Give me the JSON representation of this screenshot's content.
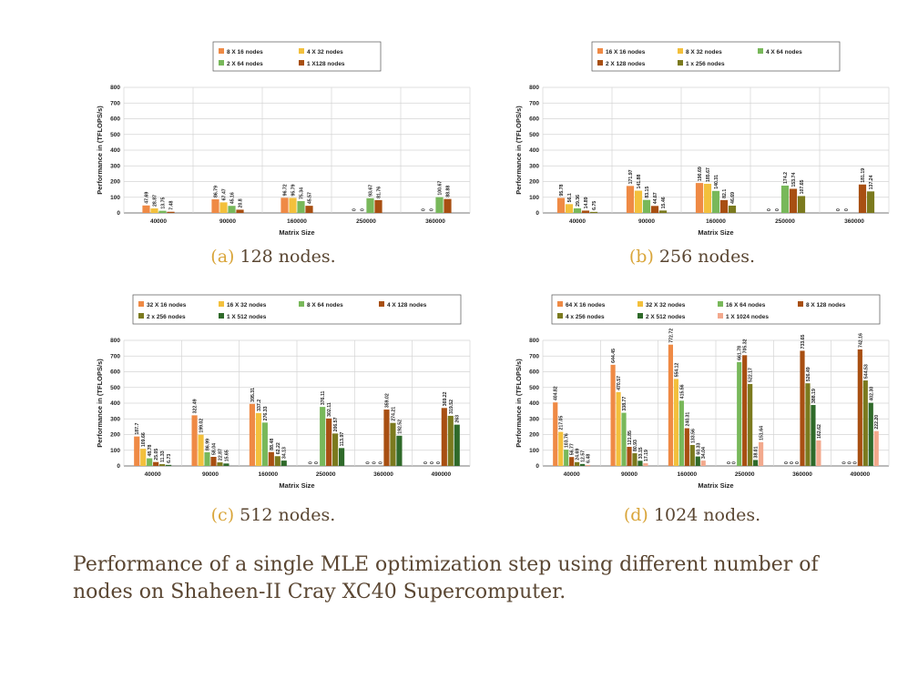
{
  "colors": {
    "orange": "#ef8a45",
    "gold": "#f3c03c",
    "lightgreen": "#78b85a",
    "darkorange": "#a84f12",
    "olive": "#7b7a1e",
    "darkgreen": "#2f6a2a",
    "peach": "#f3a98d",
    "caption_text": "#5a4632",
    "caption_label": "#d9a53a"
  },
  "panels": [
    {
      "label": "(a)",
      "text": "128 nodes."
    },
    {
      "label": "(b)",
      "text": "256 nodes."
    },
    {
      "label": "(c)",
      "text": "512 nodes."
    },
    {
      "label": "(d)",
      "text": "1024 nodes."
    }
  ],
  "figure_caption": "Performance of a single MLE optimization step using different number of nodes on Shaheen-II Cray XC40 Supercomputer.",
  "chart_data": [
    {
      "type": "bar",
      "ylabel": "Performance in (TFLOPS/s)",
      "xlabel": "Matrix Size",
      "ylim": [
        0,
        800
      ],
      "yticks": [
        0,
        100,
        200,
        300,
        400,
        500,
        600,
        700,
        800
      ],
      "grid": true,
      "legend_position": "top",
      "categories": [
        "40000",
        "90000",
        "160000",
        "250000",
        "360000"
      ],
      "series": [
        {
          "name": "8 X 16 nodes",
          "color": "orange",
          "values": [
            47.69,
            86.79,
            96.72,
            0,
            0
          ],
          "labels": [
            "47.69",
            "86.79",
            "96.72",
            "0",
            "0"
          ]
        },
        {
          "name": "4 X 32 nodes",
          "color": "gold",
          "values": [
            28.87,
            67.47,
            95.79,
            0,
            0
          ],
          "labels": [
            "28.87",
            "67.47",
            "95.79",
            "0",
            "0"
          ]
        },
        {
          "name": "2 X 64 nodes",
          "color": "lightgreen",
          "values": [
            13.75,
            45.16,
            75.34,
            93.67,
            100.67
          ],
          "labels": [
            "13.75",
            "45.16",
            "75.34",
            "93.67",
            "100.67"
          ]
        },
        {
          "name": "1 X128 nodes",
          "color": "darkorange",
          "values": [
            7.48,
            20.8,
            45.57,
            81.76,
            88.88
          ],
          "labels": [
            "7.48",
            "20.8",
            "45.57",
            "81.76",
            "88.88"
          ]
        }
      ]
    },
    {
      "type": "bar",
      "ylabel": "Performance in (TFLOPS/s)",
      "xlabel": "Matrix Size",
      "ylim": [
        0,
        800
      ],
      "yticks": [
        0,
        100,
        200,
        300,
        400,
        500,
        600,
        700,
        800
      ],
      "grid": true,
      "legend_position": "top",
      "categories": [
        "40000",
        "90000",
        "160000",
        "250000",
        "360000"
      ],
      "series": [
        {
          "name": "16 X 16 nodes",
          "color": "orange",
          "values": [
            95.78,
            171.97,
            190.69,
            0,
            0
          ],
          "labels": [
            "95.78",
            "171.97",
            "190.69",
            "0",
            "0"
          ]
        },
        {
          "name": "8 X 32 nodes",
          "color": "gold",
          "values": [
            56.1,
            141.88,
            185.67,
            0,
            0
          ],
          "labels": [
            "56.1",
            "141.88",
            "185.67",
            "0",
            "0"
          ]
        },
        {
          "name": "4 X 64 nodes",
          "color": "lightgreen",
          "values": [
            29.36,
            83.15,
            140.31,
            174.2,
            0
          ],
          "labels": [
            "29.36",
            "83.15",
            "140.31",
            "174.2",
            ""
          ]
        },
        {
          "name": "2 X 128 nodes",
          "color": "darkorange",
          "values": [
            14.89,
            44.67,
            82.1,
            153.74,
            181.19
          ],
          "labels": [
            "14.89",
            "44.67",
            "82.1",
            "153.74",
            "181.19"
          ]
        },
        {
          "name": "1 x 256 nodes",
          "color": "olive",
          "values": [
            6.75,
            15.46,
            46.69,
            107.65,
            137.24
          ],
          "labels": [
            "6.75",
            "15.46",
            "46.69",
            "107.65",
            "137.24"
          ]
        }
      ]
    },
    {
      "type": "bar",
      "ylabel": "Performance in (TFLOPS/s)",
      "xlabel": "Matrix Size",
      "ylim": [
        0,
        800
      ],
      "yticks": [
        0,
        100,
        200,
        300,
        400,
        500,
        600,
        700,
        800
      ],
      "grid": true,
      "legend_position": "top",
      "categories": [
        "40000",
        "90000",
        "160000",
        "250000",
        "360000",
        "490000"
      ],
      "series": [
        {
          "name": "32 X 16 nodes",
          "color": "orange",
          "values": [
            187.7,
            322.49,
            395.31,
            0,
            0,
            0
          ],
          "labels": [
            "187.7",
            "322.49",
            "395.31",
            "0",
            "0",
            "0"
          ]
        },
        {
          "name": "16 X 32 nodes",
          "color": "gold",
          "values": [
            109.66,
            199.02,
            337.2,
            0,
            0,
            0
          ],
          "labels": [
            "109.66",
            "199.02",
            "337.2",
            "0",
            "0",
            "0"
          ]
        },
        {
          "name": "8 X 64 nodes",
          "color": "lightgreen",
          "values": [
            48.78,
            86.99,
            276.33,
            376.11,
            0,
            0
          ],
          "labels": [
            "48.78",
            "86.99",
            "276.33",
            "376.11",
            "0",
            "0"
          ]
        },
        {
          "name": "4 X 128 nodes",
          "color": "darkorange",
          "values": [
            25.05,
            58.04,
            88.48,
            302.11,
            359.02,
            369.22
          ],
          "labels": [
            "25.05",
            "58.04",
            "88.48",
            "302.11",
            "359.02",
            "369.22"
          ]
        },
        {
          "name": "2 x 256 nodes",
          "color": "olive",
          "values": [
            11.33,
            22.87,
            62.22,
            206.57,
            274.21,
            319.52
          ],
          "labels": [
            "11.33",
            "22.87",
            "62.22",
            "206.57",
            "274.21",
            "319.52"
          ]
        },
        {
          "name": "1 X 512 nodes",
          "color": "darkgreen",
          "values": [
            6.73,
            15.65,
            34.13,
            113.97,
            192.52,
            263
          ],
          "labels": [
            "6.73",
            "15.65",
            "34.13",
            "113.97",
            "192.52",
            "263"
          ]
        }
      ]
    },
    {
      "type": "bar",
      "ylabel": "Performance in (TFLOPS/s)",
      "xlabel": "Matrix Size",
      "ylim": [
        0,
        800
      ],
      "yticks": [
        0,
        100,
        200,
        300,
        400,
        500,
        600,
        700,
        800
      ],
      "grid": true,
      "legend_position": "top",
      "categories": [
        "40000",
        "90000",
        "160000",
        "250000",
        "360000",
        "490000"
      ],
      "series": [
        {
          "name": "64 X 16 nodes",
          "color": "orange",
          "values": [
            404.82,
            644.45,
            772.72,
            0,
            0,
            0
          ],
          "labels": [
            "404.82",
            "644.45",
            "772.72",
            "0",
            "0",
            "0"
          ]
        },
        {
          "name": "32 X 32 nodes",
          "color": "gold",
          "values": [
            217.05,
            470.57,
            554.12,
            0,
            0,
            0
          ],
          "labels": [
            "217.05",
            "470.57",
            "554.12",
            "0",
            "0",
            "0"
          ]
        },
        {
          "name": "16 X 64 nodes",
          "color": "lightgreen",
          "values": [
            103.76,
            338.77,
            415.56,
            661.78,
            0,
            0
          ],
          "labels": [
            "103.76",
            "338.77",
            "415.56",
            "661.78",
            "0",
            "0"
          ]
        },
        {
          "name": "8 X 128 nodes",
          "color": "darkorange",
          "values": [
            56.77,
            121.85,
            240.31,
            705.32,
            733.65,
            742.16
          ],
          "labels": [
            "56.77",
            "121.85",
            "240.31",
            "705.32",
            "733.65",
            "742.16"
          ]
        },
        {
          "name": "4 x 256 nodes",
          "color": "olive",
          "values": [
            24.69,
            80.93,
            133.56,
            522.17,
            526.49,
            544.53
          ],
          "labels": [
            "24.69",
            "80.93",
            "133.56",
            "522.17",
            "526.49",
            "544.53"
          ]
        },
        {
          "name": "2 X 512 nodes",
          "color": "darkgreen",
          "values": [
            12.57,
            33.15,
            60.33,
            38.01,
            388.19,
            402.3
          ],
          "labels": [
            "12.57",
            "33.15",
            "60.33",
            "38.01",
            "388.19",
            "402.30"
          ]
        },
        {
          "name": "1 X 1024 nodes",
          "color": "peach",
          "values": [
            6.48,
            17.19,
            34.04,
            151.64,
            162.62,
            222.2
          ],
          "labels": [
            "6.48",
            "17.19",
            "34.04",
            "151.64",
            "162.62",
            "222.20"
          ]
        }
      ]
    }
  ]
}
